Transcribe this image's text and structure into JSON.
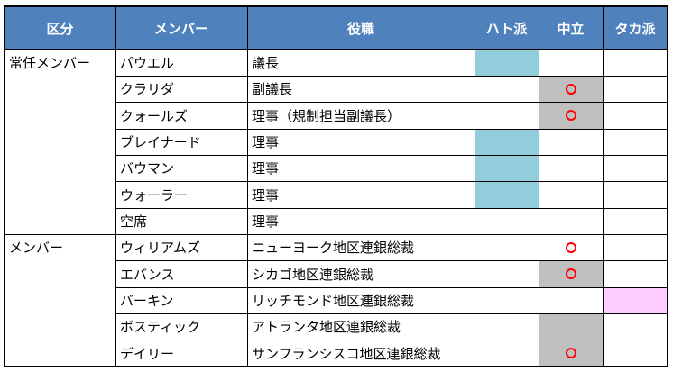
{
  "headers": {
    "category": "区分",
    "member": "メンバー",
    "role": "役職",
    "dove": "ハト派",
    "neutral": "中立",
    "hawk": "タカ派"
  },
  "groups": [
    {
      "label": "常任メンバー",
      "rows": 7
    },
    {
      "label": "メンバー",
      "rows": 5
    }
  ],
  "rows": [
    {
      "name": "パウエル",
      "role": "議長",
      "stance": "dove",
      "circle": false
    },
    {
      "name": "クラリダ",
      "role": "副議長",
      "stance": "neutral",
      "circle": true
    },
    {
      "name": "クォールズ",
      "role": "理事（規制担当副議長）",
      "stance": "neutral",
      "circle": true
    },
    {
      "name": "ブレイナード",
      "role": "理事",
      "stance": "dove",
      "circle": false
    },
    {
      "name": "バウマン",
      "role": "理事",
      "stance": "dove",
      "circle": false
    },
    {
      "name": "ウォーラー",
      "role": "理事",
      "stance": "dove",
      "circle": false
    },
    {
      "name": "空席",
      "role": "理事",
      "stance": "",
      "circle": false
    },
    {
      "name": "ウィリアムズ",
      "role": "ニューヨーク地区連銀総裁",
      "stance": "",
      "circle": true
    },
    {
      "name": "エバンス",
      "role": "シカゴ地区連銀総裁",
      "stance": "neutral",
      "circle": true
    },
    {
      "name": "バーキン",
      "role": "リッチモンド地区連銀総裁",
      "stance": "hawk",
      "circle": false
    },
    {
      "name": "ボスティック",
      "role": "アトランタ地区連銀総裁",
      "stance": "neutral",
      "circle": false
    },
    {
      "name": "デイリー",
      "role": "サンフランシスコ地区連銀総裁",
      "stance": "neutral",
      "circle": true
    }
  ],
  "colors": {
    "header_bg": "#4f81bd",
    "dove": "#92cddc",
    "neutral": "#bfbfbf",
    "hawk": "#ffccff",
    "circle": "#ff0000"
  }
}
